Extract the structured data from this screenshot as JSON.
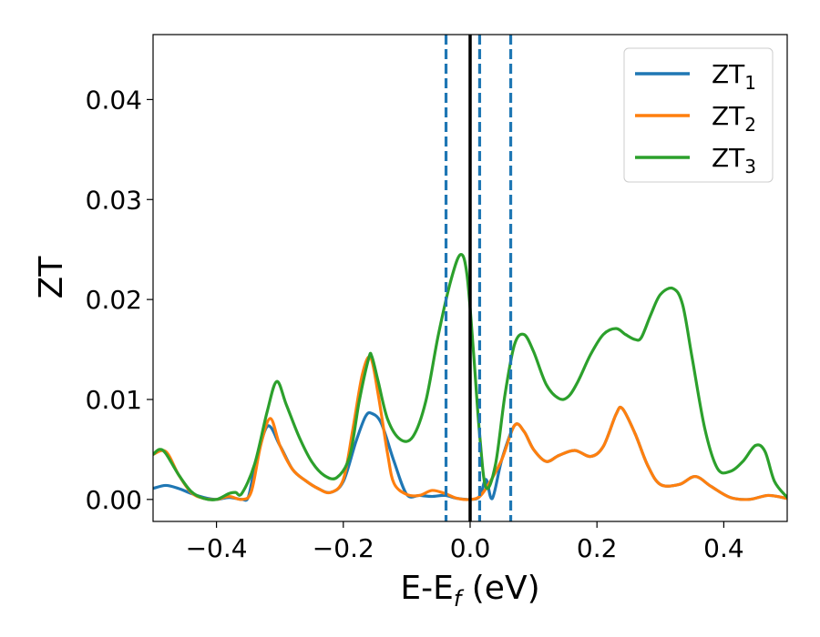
{
  "chart_data": {
    "type": "line",
    "xlabel": "E-E",
    "xlabel_subscript": "f",
    "xlabel_unit": " (eV)",
    "ylabel": "ZT",
    "xlim": [
      -0.5,
      0.5
    ],
    "ylim": [
      -0.0022,
      0.0465
    ],
    "xticks": [
      -0.4,
      -0.2,
      0.0,
      0.2,
      0.4
    ],
    "xtick_labels": [
      "−0.4",
      "−0.2",
      "0.0",
      "0.2",
      "0.4"
    ],
    "yticks": [
      0.0,
      0.01,
      0.02,
      0.03,
      0.04
    ],
    "ytick_labels": [
      "0.00",
      "0.01",
      "0.02",
      "0.03",
      "0.04"
    ],
    "grid": false,
    "legend_position": "top-right",
    "vertical_lines": [
      {
        "x": 0.0,
        "style": "solid",
        "color": "#000000"
      },
      {
        "x": -0.038,
        "style": "dashed",
        "color": "#1f77b4"
      },
      {
        "x": 0.015,
        "style": "dashed",
        "color": "#1f77b4"
      },
      {
        "x": 0.064,
        "style": "dashed",
        "color": "#1f77b4"
      }
    ],
    "series": [
      {
        "name": "ZT",
        "name_subscript": "1",
        "color": "#1f77b4",
        "x": [
          -0.5,
          -0.48,
          -0.46,
          -0.44,
          -0.42,
          -0.4,
          -0.38,
          -0.36,
          -0.35,
          -0.34,
          -0.32,
          -0.3,
          -0.28,
          -0.26,
          -0.24,
          -0.22,
          -0.2,
          -0.18,
          -0.165,
          -0.155,
          -0.14,
          -0.12,
          -0.1,
          -0.08,
          -0.06,
          -0.04,
          -0.02,
          0.0,
          0.015,
          0.025,
          0.035,
          0.05,
          0.07,
          0.085,
          0.1,
          0.12,
          0.14,
          0.165,
          0.19,
          0.21,
          0.23,
          0.24,
          0.26,
          0.28,
          0.3,
          0.33,
          0.355,
          0.38,
          0.41,
          0.44,
          0.47,
          0.5
        ],
        "y": [
          0.0011,
          0.0014,
          0.0011,
          0.0006,
          0.0002,
          0.0,
          0.0002,
          0.0,
          0.0002,
          0.003,
          0.0073,
          0.0054,
          0.003,
          0.0019,
          0.0011,
          0.0007,
          0.0018,
          0.0058,
          0.0083,
          0.0086,
          0.0076,
          0.0038,
          0.0005,
          0.0004,
          0.0003,
          0.0004,
          0.0001,
          0.0,
          0.0003,
          0.002,
          0.0001,
          0.004,
          0.0074,
          0.0068,
          0.005,
          0.0038,
          0.0044,
          0.0049,
          0.0043,
          0.0053,
          0.0085,
          0.0091,
          0.0066,
          0.0034,
          0.0015,
          0.0015,
          0.0023,
          0.0013,
          0.0002,
          0.0,
          0.0004,
          0.0001
        ]
      },
      {
        "name": "ZT",
        "name_subscript": "2",
        "color": "#ff7f0e",
        "x": [
          -0.5,
          -0.48,
          -0.46,
          -0.44,
          -0.42,
          -0.4,
          -0.38,
          -0.36,
          -0.345,
          -0.33,
          -0.315,
          -0.3,
          -0.28,
          -0.26,
          -0.24,
          -0.22,
          -0.2,
          -0.185,
          -0.17,
          -0.157,
          -0.145,
          -0.13,
          -0.12,
          -0.1,
          -0.08,
          -0.06,
          -0.04,
          -0.02,
          0.0,
          0.015,
          0.03,
          0.05,
          0.07,
          0.085,
          0.1,
          0.12,
          0.14,
          0.165,
          0.19,
          0.21,
          0.23,
          0.24,
          0.26,
          0.28,
          0.3,
          0.33,
          0.355,
          0.38,
          0.41,
          0.44,
          0.47,
          0.5
        ],
        "y": [
          0.0045,
          0.0048,
          0.0025,
          0.0007,
          0.0001,
          0.0,
          0.0003,
          0.0,
          0.0008,
          0.0055,
          0.0081,
          0.0054,
          0.003,
          0.0019,
          0.0011,
          0.0007,
          0.002,
          0.007,
          0.0125,
          0.0142,
          0.0105,
          0.0045,
          0.0016,
          0.0005,
          0.0004,
          0.0009,
          0.0006,
          0.0001,
          0.0,
          0.0003,
          0.0016,
          0.004,
          0.0074,
          0.0068,
          0.005,
          0.0038,
          0.0044,
          0.0049,
          0.0043,
          0.0053,
          0.0085,
          0.0091,
          0.0066,
          0.0034,
          0.0015,
          0.0015,
          0.0023,
          0.0013,
          0.0002,
          0.0,
          0.0004,
          0.0001
        ]
      },
      {
        "name": "ZT",
        "name_subscript": "3",
        "color": "#2ca02c",
        "x": [
          -0.5,
          -0.49,
          -0.48,
          -0.46,
          -0.44,
          -0.42,
          -0.4,
          -0.38,
          -0.37,
          -0.36,
          -0.34,
          -0.32,
          -0.305,
          -0.29,
          -0.27,
          -0.25,
          -0.23,
          -0.21,
          -0.19,
          -0.175,
          -0.16,
          -0.155,
          -0.145,
          -0.13,
          -0.11,
          -0.09,
          -0.07,
          -0.05,
          -0.03,
          -0.015,
          -0.005,
          0.005,
          0.015,
          0.025,
          0.04,
          0.055,
          0.07,
          0.085,
          0.1,
          0.12,
          0.14,
          0.155,
          0.17,
          0.19,
          0.21,
          0.23,
          0.245,
          0.26,
          0.27,
          0.285,
          0.3,
          0.32,
          0.335,
          0.35,
          0.37,
          0.39,
          0.41,
          0.43,
          0.45,
          0.465,
          0.48,
          0.5
        ],
        "y": [
          0.0045,
          0.005,
          0.0046,
          0.0025,
          0.0008,
          0.0001,
          0.0,
          0.0006,
          0.0007,
          0.0006,
          0.0035,
          0.0088,
          0.0118,
          0.0095,
          0.0063,
          0.0038,
          0.0024,
          0.0022,
          0.0043,
          0.0098,
          0.0141,
          0.0143,
          0.0118,
          0.008,
          0.006,
          0.0063,
          0.0098,
          0.0165,
          0.022,
          0.0245,
          0.0225,
          0.015,
          0.0065,
          0.0012,
          0.0035,
          0.0105,
          0.0155,
          0.0165,
          0.0148,
          0.0115,
          0.0101,
          0.0103,
          0.0118,
          0.0145,
          0.0165,
          0.0171,
          0.0165,
          0.016,
          0.0162,
          0.0185,
          0.0205,
          0.0211,
          0.0195,
          0.0142,
          0.0071,
          0.0031,
          0.0028,
          0.0038,
          0.0054,
          0.0048,
          0.0018,
          0.0002
        ]
      }
    ]
  }
}
